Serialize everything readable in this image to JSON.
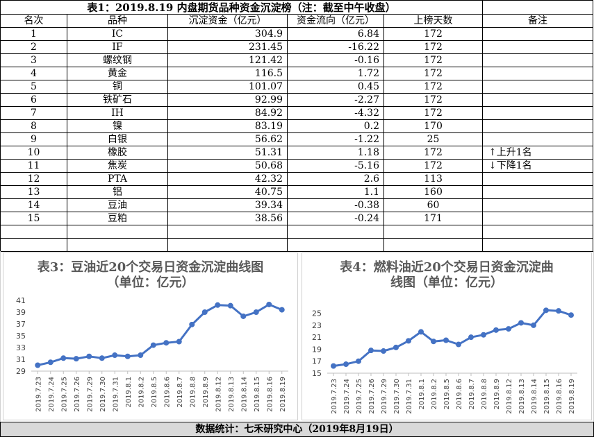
{
  "table": {
    "title": "表1：2019.8.19 内盘期货品种资金沉淀榜（注：截至中午收盘）",
    "headers": [
      "名次",
      "品种",
      "沉淀资金（亿元）",
      "资金流向（亿元）",
      "上榜天数",
      "备注"
    ],
    "rows": [
      {
        "rank": "1",
        "name": "IC",
        "amount": "304.9",
        "flow": "6.84",
        "days": "172",
        "note": ""
      },
      {
        "rank": "2",
        "name": "IF",
        "amount": "231.45",
        "flow": "-16.22",
        "days": "172",
        "note": ""
      },
      {
        "rank": "3",
        "name": "螺纹钢",
        "amount": "121.42",
        "flow": "-0.16",
        "days": "172",
        "note": ""
      },
      {
        "rank": "4",
        "name": "黄金",
        "amount": "116.5",
        "flow": "1.72",
        "days": "172",
        "note": ""
      },
      {
        "rank": "5",
        "name": "铜",
        "amount": "101.07",
        "flow": "0.45",
        "days": "172",
        "note": ""
      },
      {
        "rank": "6",
        "name": "铁矿石",
        "amount": "92.99",
        "flow": "-2.27",
        "days": "172",
        "note": ""
      },
      {
        "rank": "7",
        "name": "IH",
        "amount": "84.92",
        "flow": "-4.32",
        "days": "172",
        "note": ""
      },
      {
        "rank": "8",
        "name": "镍",
        "amount": "83.19",
        "flow": "0.2",
        "days": "170",
        "note": ""
      },
      {
        "rank": "9",
        "name": "白银",
        "amount": "56.62",
        "flow": "-1.22",
        "days": "25",
        "note": ""
      },
      {
        "rank": "10",
        "name": "橡胶",
        "amount": "51.31",
        "flow": "1.18",
        "days": "172",
        "note": "↑上升1名"
      },
      {
        "rank": "11",
        "name": "焦炭",
        "amount": "50.68",
        "flow": "-5.16",
        "days": "172",
        "note": "↓下降1名"
      },
      {
        "rank": "12",
        "name": "PTA",
        "amount": "42.32",
        "flow": "2.6",
        "days": "113",
        "note": ""
      },
      {
        "rank": "13",
        "name": "铝",
        "amount": "40.75",
        "flow": "1.1",
        "days": "160",
        "note": ""
      },
      {
        "rank": "14",
        "name": "豆油",
        "amount": "39.34",
        "flow": "-0.38",
        "days": "60",
        "note": ""
      },
      {
        "rank": "15",
        "name": "豆粕",
        "amount": "38.56",
        "flow": "-0.24",
        "days": "171",
        "note": ""
      }
    ]
  },
  "chart_data": [
    {
      "type": "line",
      "title": "表3：豆油近20个交易日资金沉淀曲线图（单位：亿元）",
      "title_lines": [
        "表3：豆油近20个交易日资金沉淀曲线图",
        "（单位：亿元）"
      ],
      "x": [
        "2019.7.23",
        "2019.7.24",
        "2019.7.25",
        "2019.7.26",
        "2019.7.29",
        "2019.7.30",
        "2019.7.31",
        "2019.8.1",
        "2019.8.2",
        "2019.8.5",
        "2019.8.6",
        "2019.8.7",
        "2019.8.8",
        "2019.8.9",
        "2019.8.12",
        "2019.8.13",
        "2019.8.14",
        "2019.8.15",
        "2019.8.16",
        "2019.8.19"
      ],
      "values": [
        30.0,
        30.5,
        31.2,
        31.1,
        31.5,
        31.2,
        31.7,
        31.5,
        31.7,
        33.4,
        33.8,
        34.0,
        36.9,
        39.0,
        40.2,
        40.1,
        38.3,
        39.0,
        40.3,
        39.4
      ],
      "ylim": [
        29,
        41
      ],
      "yticks": [
        29,
        31,
        33,
        35,
        37,
        39,
        41
      ],
      "color": "#4472c4",
      "grid": false
    },
    {
      "type": "line",
      "title": "表4：燃料油近20个交易日资金沉淀曲线图（单位：亿元）",
      "title_lines": [
        "表4：燃料油近20个交易日资金沉淀曲",
        "线图（单位：亿元）"
      ],
      "x": [
        "2019.7.23",
        "2019.7.24",
        "2019.7.25",
        "2019.7.26",
        "2019.7.29",
        "2019.7.30",
        "2019.7.31",
        "2019.8.1",
        "2019.8.2",
        "2019.8.5",
        "2019.8.6",
        "2019.8.7",
        "2019.8.8",
        "2019.8.9",
        "2019.8.12",
        "2019.8.13",
        "2019.8.14",
        "2019.8.15",
        "2019.8.16",
        "2019.8.19"
      ],
      "values": [
        16.2,
        16.5,
        17.0,
        18.8,
        18.7,
        19.3,
        20.4,
        21.9,
        20.3,
        20.5,
        19.8,
        21.0,
        21.4,
        22.2,
        22.4,
        23.4,
        23.0,
        25.5,
        25.4,
        24.7
      ],
      "ylim": [
        15,
        26
      ],
      "yticks": [
        15,
        17,
        19,
        21,
        23,
        25
      ],
      "color": "#4472c4",
      "grid": false
    }
  ],
  "footer": "数据统计：七禾研究中心（2019年8月19日）"
}
